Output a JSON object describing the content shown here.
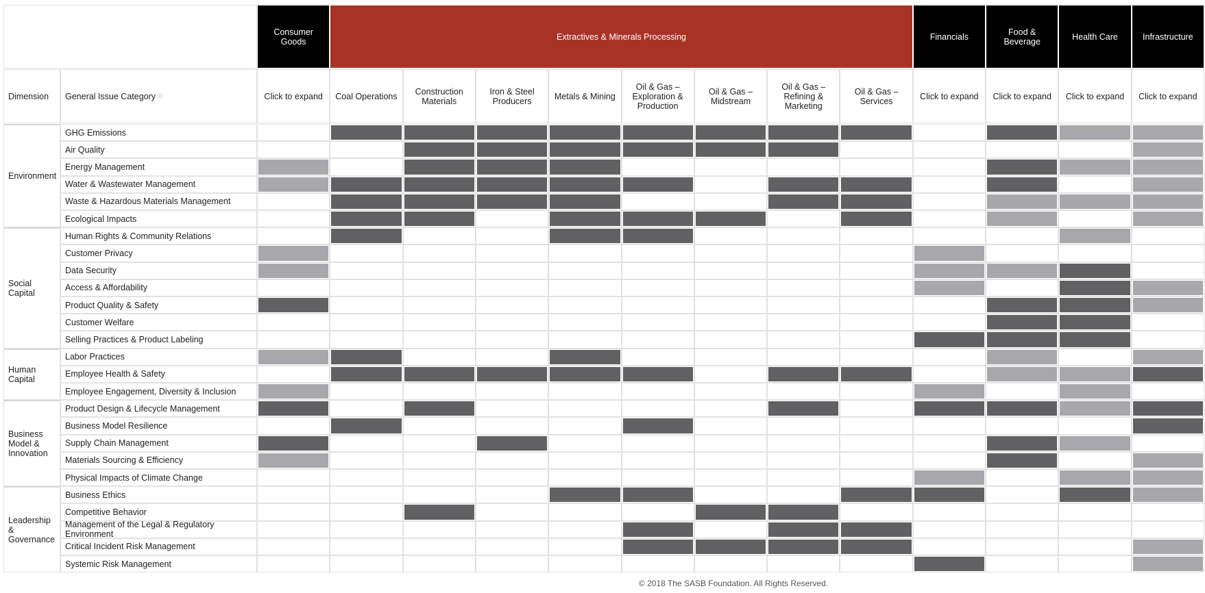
{
  "header": {
    "dimension_label": "Dimension",
    "issue_label": "General Issue Category",
    "info_icon": "ⓘ"
  },
  "shade_colors": [
    "#ffffff",
    "#a8a7ab",
    "#616163"
  ],
  "sectors": [
    {
      "name": "Consumer Goods",
      "color": "#000000",
      "industries": [
        "Click to expand"
      ]
    },
    {
      "name": "Extractives & Minerals Processing",
      "color": "#a93226",
      "industries": [
        "Coal Operations",
        "Construction Materials",
        "Iron & Steel Producers",
        "Metals & Mining",
        "Oil & Gas – Exploration & Production",
        "Oil & Gas – Midstream",
        "Oil & Gas – Refining & Marketing",
        "Oil & Gas – Services"
      ]
    },
    {
      "name": "Financials",
      "color": "#000000",
      "industries": [
        "Click to expand"
      ]
    },
    {
      "name": "Food & Beverage",
      "color": "#000000",
      "industries": [
        "Click to expand"
      ]
    },
    {
      "name": "Health Care",
      "color": "#000000",
      "industries": [
        "Click to expand"
      ]
    },
    {
      "name": "Infrastructure",
      "color": "#000000",
      "industries": [
        "Click to expand"
      ]
    }
  ],
  "dimensions": [
    {
      "name": "Environment",
      "issues": [
        {
          "name": "GHG Emissions",
          "levels": [
            0,
            2,
            2,
            2,
            2,
            2,
            2,
            2,
            2,
            0,
            2,
            1,
            1
          ]
        },
        {
          "name": "Air Quality",
          "levels": [
            0,
            0,
            2,
            2,
            2,
            2,
            2,
            2,
            0,
            0,
            0,
            0,
            1
          ]
        },
        {
          "name": "Energy Management",
          "levels": [
            1,
            0,
            2,
            2,
            2,
            0,
            0,
            0,
            0,
            0,
            2,
            1,
            1
          ]
        },
        {
          "name": "Water & Wastewater Management",
          "levels": [
            1,
            2,
            2,
            2,
            2,
            2,
            0,
            2,
            2,
            0,
            2,
            0,
            1
          ]
        },
        {
          "name": "Waste & Hazardous Materials Management",
          "levels": [
            0,
            2,
            2,
            2,
            2,
            0,
            0,
            2,
            2,
            0,
            1,
            1,
            1
          ]
        },
        {
          "name": "Ecological Impacts",
          "levels": [
            0,
            2,
            2,
            0,
            2,
            2,
            2,
            0,
            2,
            0,
            1,
            0,
            1
          ]
        }
      ]
    },
    {
      "name": "Social Capital",
      "issues": [
        {
          "name": "Human Rights & Community Relations",
          "levels": [
            0,
            2,
            0,
            0,
            2,
            2,
            0,
            0,
            0,
            0,
            0,
            1,
            0
          ]
        },
        {
          "name": "Customer Privacy",
          "levels": [
            1,
            0,
            0,
            0,
            0,
            0,
            0,
            0,
            0,
            1,
            0,
            0,
            0
          ]
        },
        {
          "name": "Data Security",
          "levels": [
            1,
            0,
            0,
            0,
            0,
            0,
            0,
            0,
            0,
            1,
            1,
            2,
            0
          ]
        },
        {
          "name": "Access & Affordability",
          "levels": [
            0,
            0,
            0,
            0,
            0,
            0,
            0,
            0,
            0,
            1,
            0,
            2,
            1
          ]
        },
        {
          "name": "Product Quality & Safety",
          "levels": [
            2,
            0,
            0,
            0,
            0,
            0,
            0,
            0,
            0,
            0,
            2,
            2,
            1
          ]
        },
        {
          "name": "Customer Welfare",
          "levels": [
            0,
            0,
            0,
            0,
            0,
            0,
            0,
            0,
            0,
            0,
            2,
            2,
            0
          ]
        },
        {
          "name": "Selling Practices & Product Labeling",
          "levels": [
            0,
            0,
            0,
            0,
            0,
            0,
            0,
            0,
            0,
            2,
            2,
            2,
            0
          ]
        }
      ]
    },
    {
      "name": "Human Capital",
      "issues": [
        {
          "name": "Labor Practices",
          "levels": [
            1,
            2,
            0,
            0,
            2,
            0,
            0,
            0,
            0,
            0,
            1,
            0,
            1
          ]
        },
        {
          "name": "Employee Health & Safety",
          "levels": [
            0,
            2,
            2,
            2,
            2,
            2,
            0,
            2,
            2,
            0,
            1,
            1,
            2
          ]
        },
        {
          "name": "Employee Engagement, Diversity & Inclusion",
          "levels": [
            1,
            0,
            0,
            0,
            0,
            0,
            0,
            0,
            0,
            1,
            0,
            1,
            0
          ]
        }
      ]
    },
    {
      "name": "Business Model & Innovation",
      "issues": [
        {
          "name": "Product Design & Lifecycle Management",
          "levels": [
            2,
            0,
            2,
            0,
            0,
            0,
            0,
            2,
            0,
            2,
            2,
            1,
            2
          ]
        },
        {
          "name": "Business Model Resilience",
          "levels": [
            0,
            2,
            0,
            0,
            0,
            2,
            0,
            0,
            0,
            0,
            0,
            0,
            2
          ]
        },
        {
          "name": "Supply Chain Management",
          "levels": [
            2,
            0,
            0,
            2,
            0,
            0,
            0,
            0,
            0,
            0,
            2,
            1,
            0
          ]
        },
        {
          "name": "Materials Sourcing & Efficiency",
          "levels": [
            1,
            0,
            0,
            0,
            0,
            0,
            0,
            0,
            0,
            0,
            2,
            0,
            1
          ]
        },
        {
          "name": "Physical Impacts of Climate Change",
          "levels": [
            0,
            0,
            0,
            0,
            0,
            0,
            0,
            0,
            0,
            1,
            0,
            1,
            1
          ]
        }
      ]
    },
    {
      "name": "Leadership & Governance",
      "issues": [
        {
          "name": "Business Ethics",
          "levels": [
            0,
            0,
            0,
            0,
            2,
            2,
            0,
            0,
            2,
            2,
            0,
            2,
            1
          ]
        },
        {
          "name": "Competitive Behavior",
          "levels": [
            0,
            0,
            2,
            0,
            0,
            0,
            2,
            2,
            0,
            0,
            0,
            0,
            0
          ]
        },
        {
          "name": "Management of the Legal & Regulatory Environment",
          "levels": [
            0,
            0,
            0,
            0,
            0,
            2,
            0,
            2,
            2,
            0,
            0,
            0,
            0
          ]
        },
        {
          "name": "Critical Incident Risk Management",
          "levels": [
            0,
            0,
            0,
            0,
            0,
            2,
            2,
            2,
            2,
            0,
            0,
            0,
            1
          ]
        },
        {
          "name": "Systemic Risk Management",
          "levels": [
            0,
            0,
            0,
            0,
            0,
            0,
            0,
            0,
            0,
            2,
            0,
            0,
            1
          ]
        }
      ]
    }
  ],
  "footer": "© 2018 The SASB Foundation. All Rights Reserved."
}
